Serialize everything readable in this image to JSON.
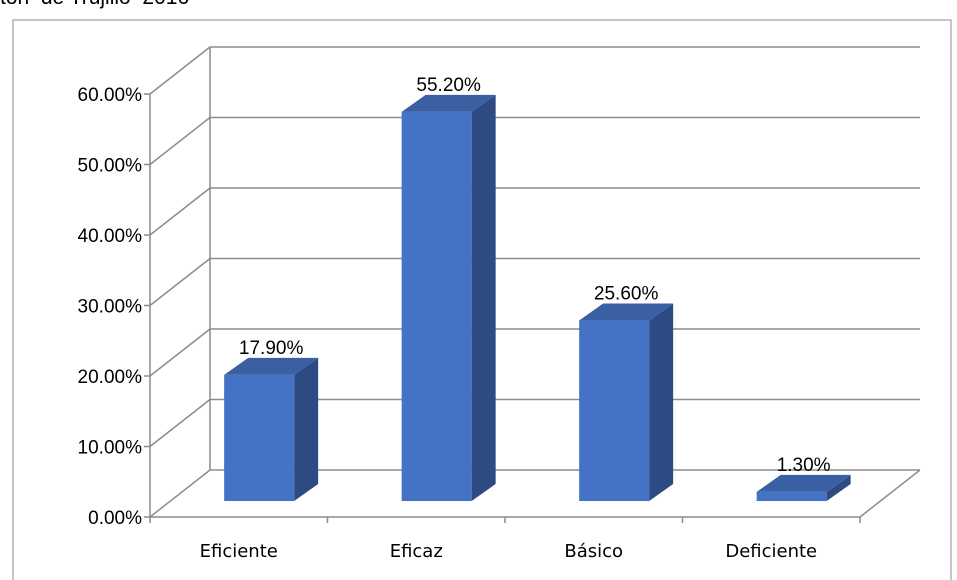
{
  "clipped_title": "ton  de Trujillo  2016",
  "chart_data": {
    "type": "bar",
    "categories": [
      "Eficiente",
      "Eficaz",
      "Básico",
      "Deficiente"
    ],
    "values": [
      17.9,
      55.2,
      25.6,
      1.3
    ],
    "data_labels": [
      "17.90%",
      "55.20%",
      "25.60%",
      "1.30%"
    ],
    "ylim": [
      0,
      60
    ],
    "yticks": [
      "0.00%",
      "10.00%",
      "20.00%",
      "30.00%",
      "40.00%",
      "50.00%",
      "60.00%"
    ],
    "grid": true,
    "three_d": true,
    "legend": "none",
    "colors": {
      "bar_front": "#4472c4",
      "bar_side": "#2e4a82",
      "bar_top": "#3a5fa3",
      "grid": "#8c8c8c"
    }
  }
}
